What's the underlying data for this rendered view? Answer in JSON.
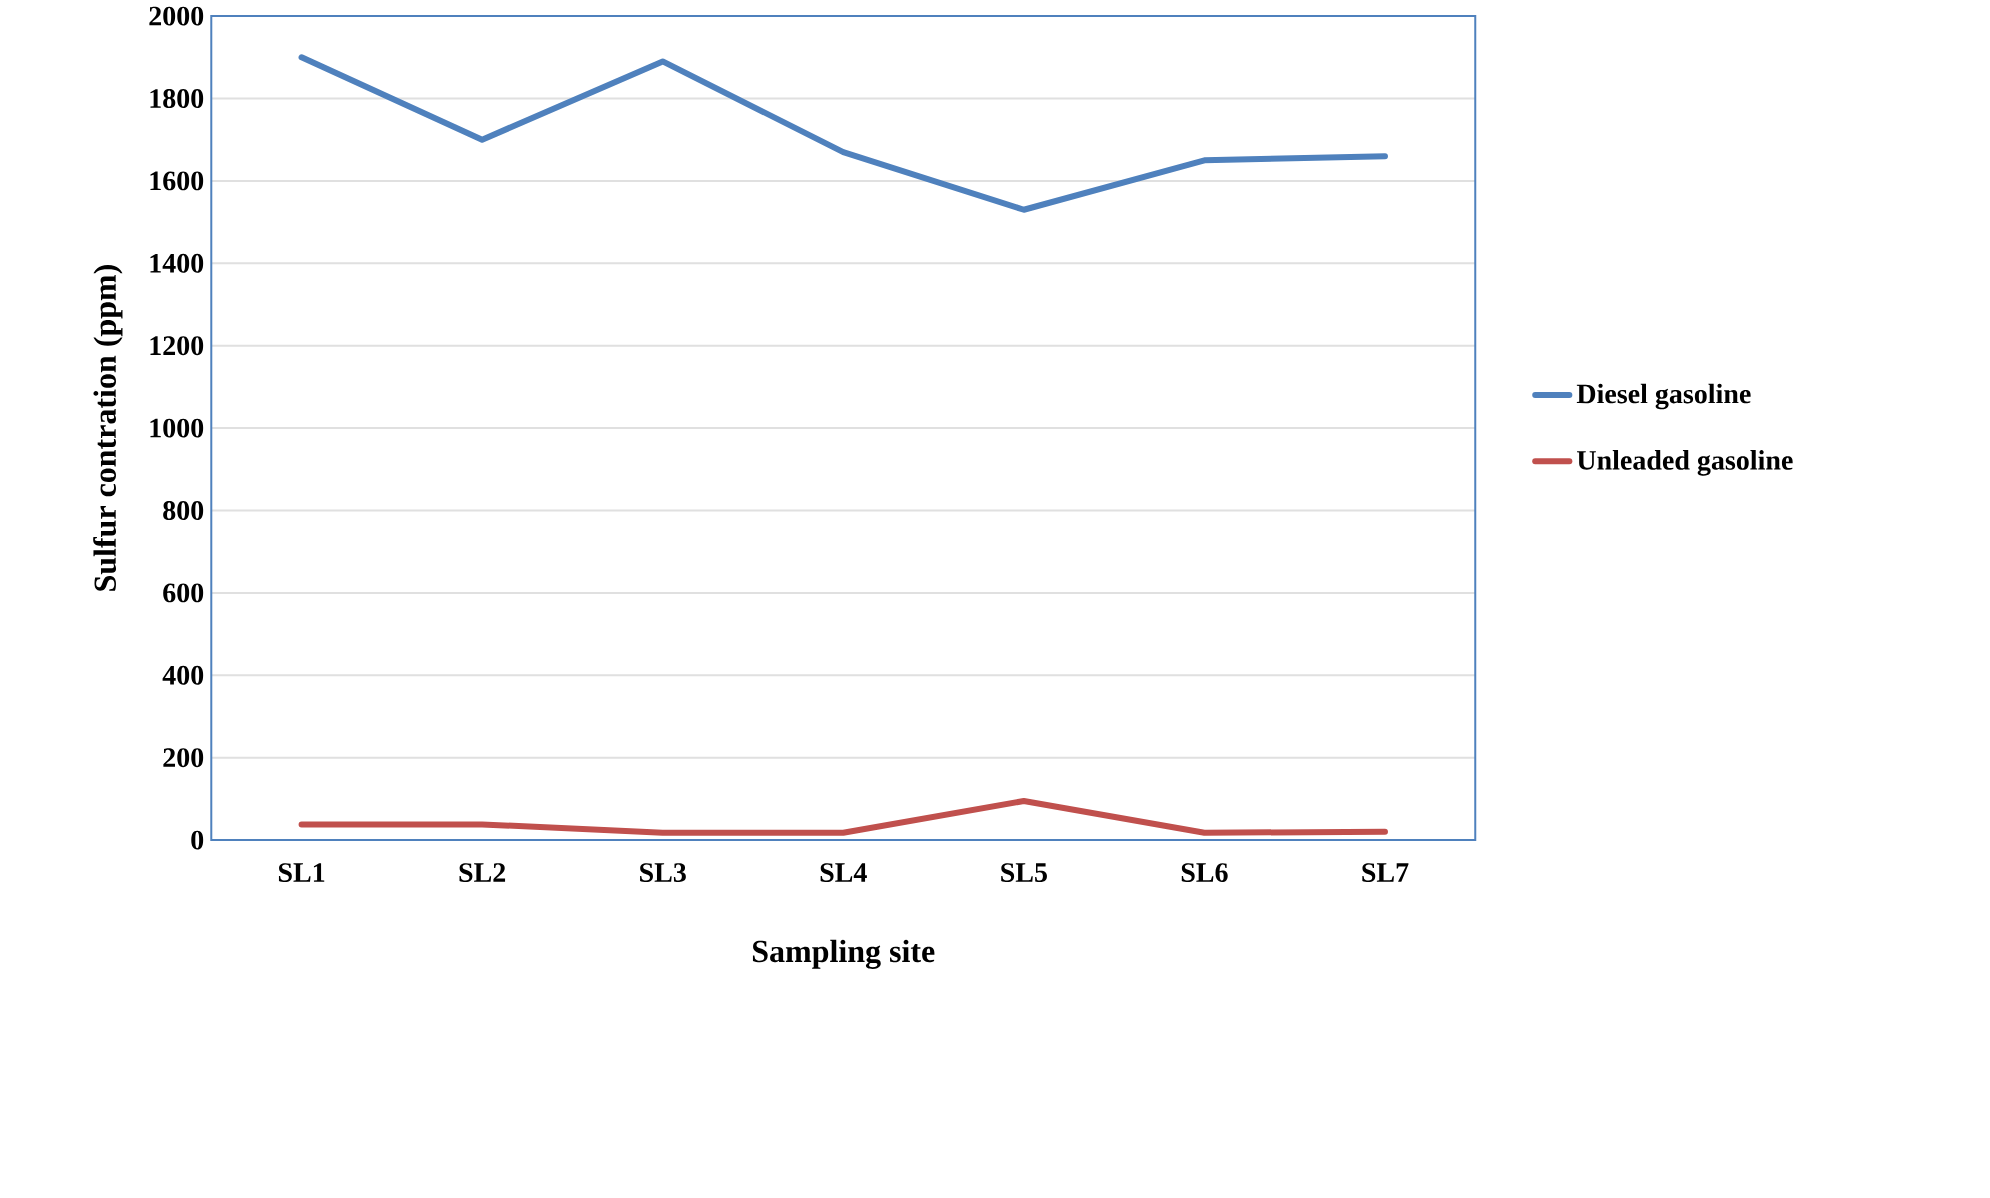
{
  "chart_data": {
    "type": "line",
    "xlabel": "Sampling site",
    "ylabel": "Sulfur contration (ppm)",
    "categories": [
      "SL1",
      "SL2",
      "SL3",
      "SL4",
      "SL5",
      "SL6",
      "SL7"
    ],
    "series": [
      {
        "name": "Diesel gasoline",
        "color": "#4f81bd",
        "values": [
          1900,
          1700,
          1890,
          1670,
          1530,
          1650,
          1660
        ]
      },
      {
        "name": "Unleaded gasoline",
        "color": "#c0504d",
        "values": [
          38,
          38,
          18,
          18,
          95,
          18,
          20
        ]
      }
    ],
    "ylim": [
      0,
      2000
    ],
    "yticks": [
      0,
      200,
      400,
      600,
      800,
      1000,
      1200,
      1400,
      1600,
      1800,
      2000
    ],
    "grid": "y",
    "legend": "right",
    "marker": "none",
    "line_style": "solid"
  }
}
